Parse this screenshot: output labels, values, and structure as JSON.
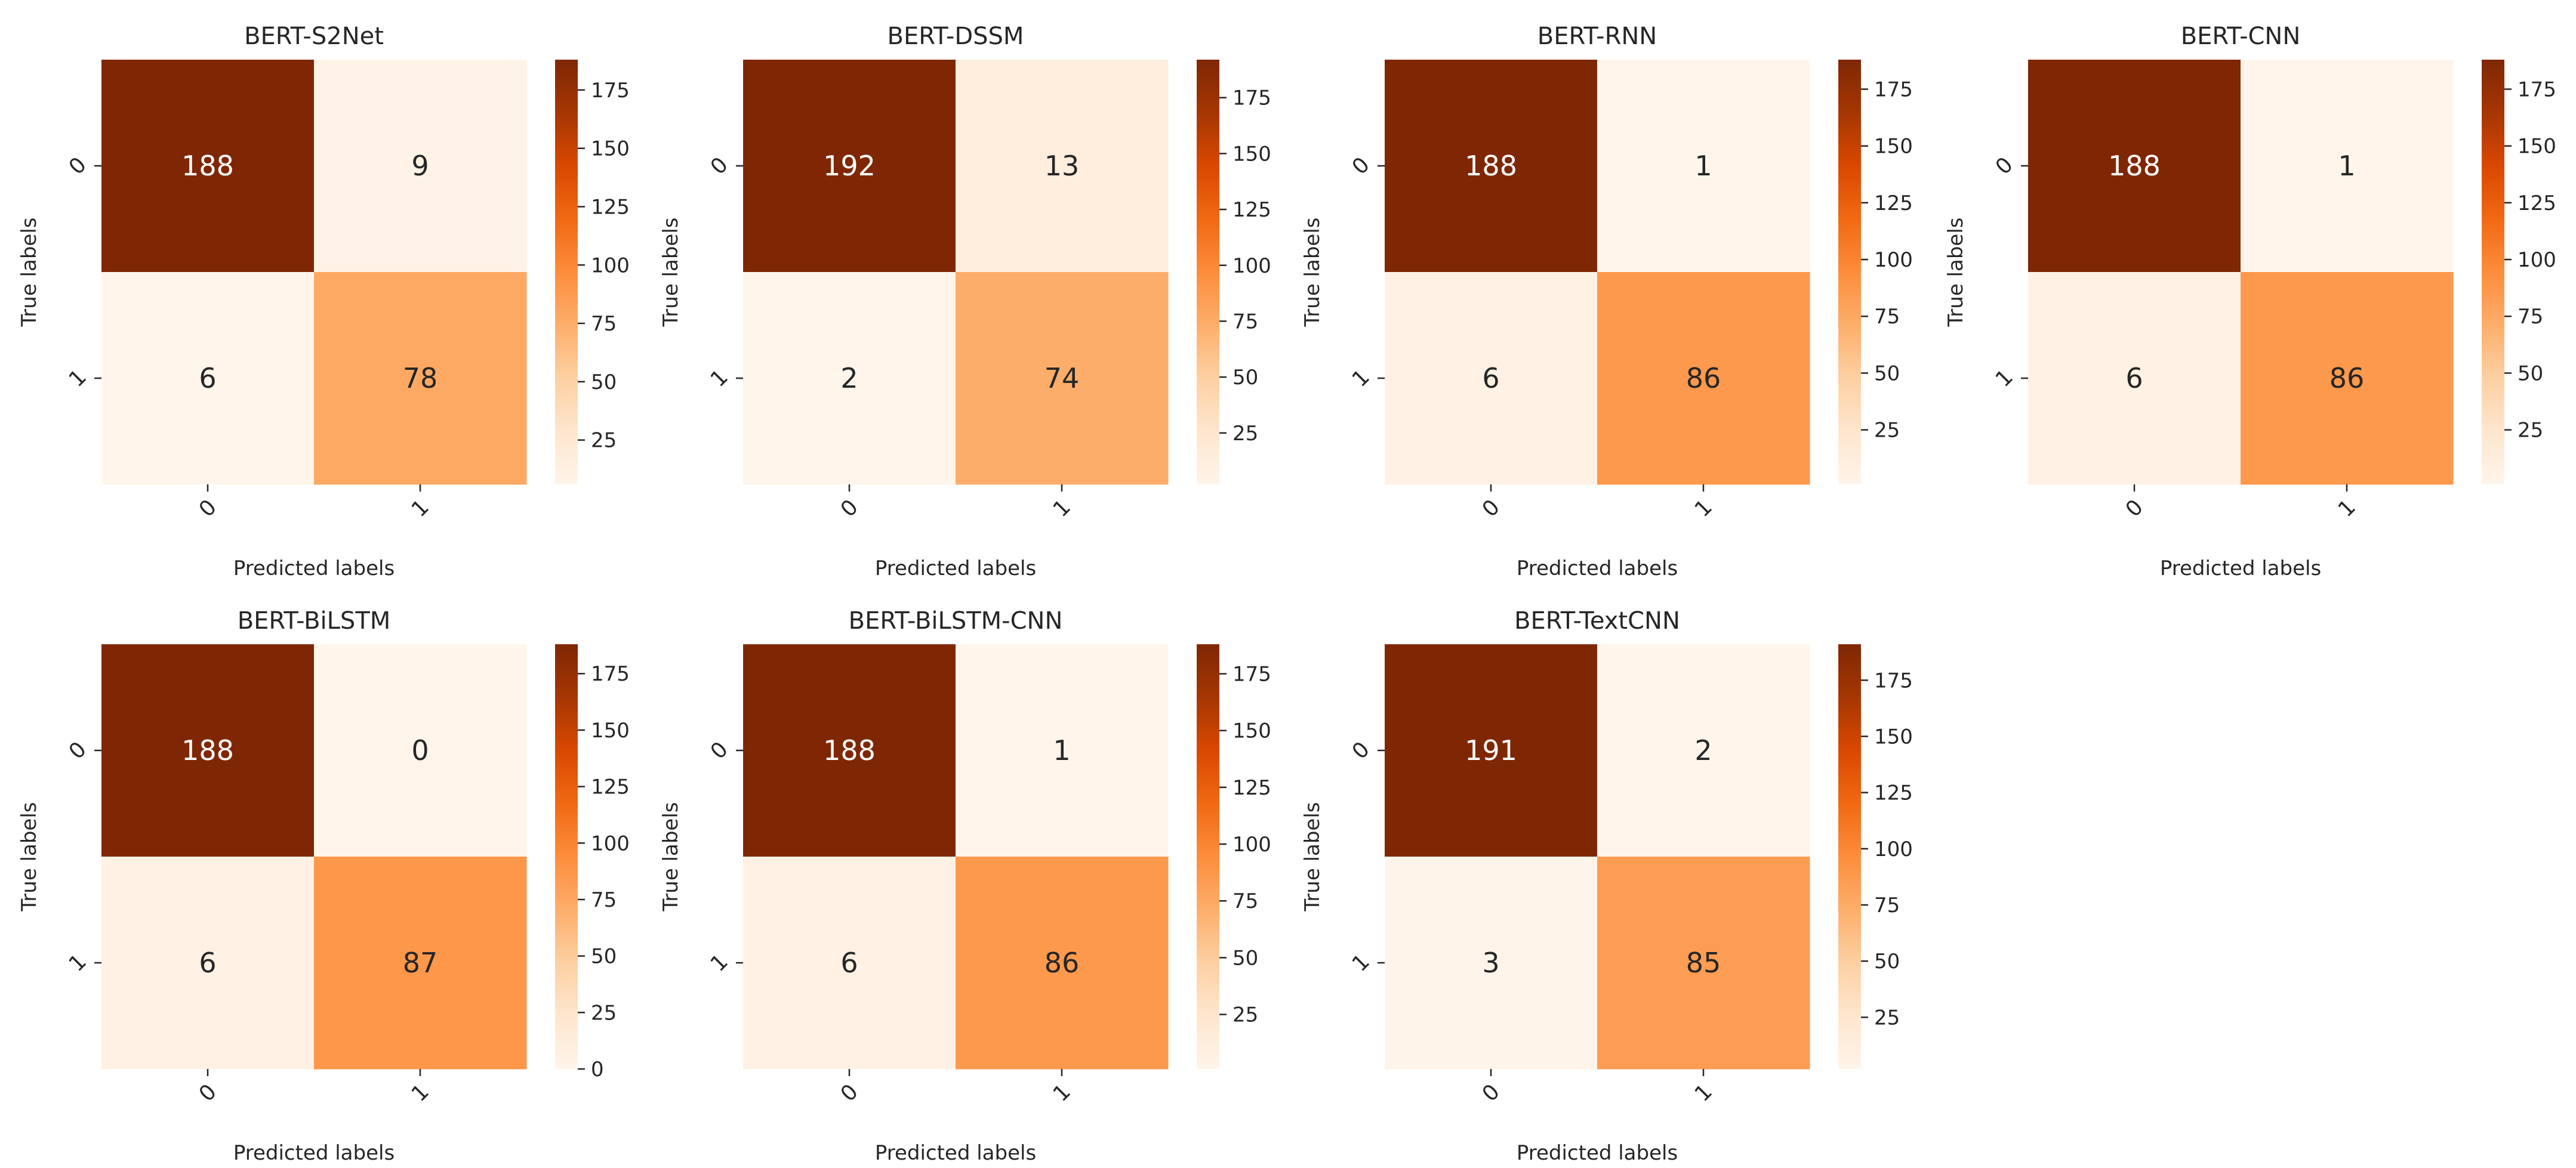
{
  "colors": {
    "cmap": [
      "#fff5eb",
      "#fee6ce",
      "#fdd0a2",
      "#fdae6b",
      "#fd8d3c",
      "#f16913",
      "#d94801",
      "#a63603",
      "#7f2704"
    ],
    "text_dark": "#262626",
    "text_light": "#ffffff"
  },
  "chart_data": [
    {
      "type": "heatmap",
      "title": "BERT-S2Net",
      "matrix": [
        [
          188,
          9
        ],
        [
          6,
          78
        ]
      ],
      "xlabel": "Predicted labels",
      "ylabel": "True labels",
      "xticklabels": [
        "0",
        "1"
      ],
      "yticklabels": [
        "0",
        "1"
      ],
      "vmin": 6,
      "vmax": 188,
      "colorbar_ticks": [
        25,
        50,
        75,
        100,
        125,
        150,
        175
      ],
      "colorbar_labels": [
        "25",
        "50",
        "75",
        "100",
        "125",
        "150",
        "175"
      ]
    },
    {
      "type": "heatmap",
      "title": "BERT-DSSM",
      "matrix": [
        [
          192,
          13
        ],
        [
          2,
          74
        ]
      ],
      "xlabel": "Predicted labels",
      "ylabel": "True labels",
      "xticklabels": [
        "0",
        "1"
      ],
      "yticklabels": [
        "0",
        "1"
      ],
      "vmin": 2,
      "vmax": 192,
      "colorbar_ticks": [
        25,
        50,
        75,
        100,
        125,
        150,
        175
      ],
      "colorbar_labels": [
        "25",
        "50",
        "75",
        "100",
        "125",
        "150",
        "175"
      ]
    },
    {
      "type": "heatmap",
      "title": "BERT-RNN",
      "matrix": [
        [
          188,
          1
        ],
        [
          6,
          86
        ]
      ],
      "xlabel": "Predicted labels",
      "ylabel": "True labels",
      "xticklabels": [
        "0",
        "1"
      ],
      "yticklabels": [
        "0",
        "1"
      ],
      "vmin": 1,
      "vmax": 188,
      "colorbar_ticks": [
        25,
        50,
        75,
        100,
        125,
        150,
        175
      ],
      "colorbar_labels": [
        "25",
        "50",
        "75",
        "100",
        "125",
        "150",
        "175"
      ]
    },
    {
      "type": "heatmap",
      "title": "BERT-CNN",
      "matrix": [
        [
          188,
          1
        ],
        [
          6,
          86
        ]
      ],
      "xlabel": "Predicted labels",
      "ylabel": "True labels",
      "xticklabels": [
        "0",
        "1"
      ],
      "yticklabels": [
        "0",
        "1"
      ],
      "vmin": 1,
      "vmax": 188,
      "colorbar_ticks": [
        25,
        50,
        75,
        100,
        125,
        150,
        175
      ],
      "colorbar_labels": [
        "25",
        "50",
        "75",
        "100",
        "125",
        "150",
        "175"
      ]
    },
    {
      "type": "heatmap",
      "title": "BERT-BiLSTM",
      "matrix": [
        [
          188,
          0
        ],
        [
          6,
          87
        ]
      ],
      "xlabel": "Predicted labels",
      "ylabel": "True labels",
      "xticklabels": [
        "0",
        "1"
      ],
      "yticklabels": [
        "0",
        "1"
      ],
      "vmin": 0,
      "vmax": 188,
      "colorbar_ticks": [
        0,
        25,
        50,
        75,
        100,
        125,
        150,
        175
      ],
      "colorbar_labels": [
        "0",
        "25",
        "50",
        "75",
        "100",
        "125",
        "150",
        "175"
      ]
    },
    {
      "type": "heatmap",
      "title": "BERT-BiLSTM-CNN",
      "matrix": [
        [
          188,
          1
        ],
        [
          6,
          86
        ]
      ],
      "xlabel": "Predicted labels",
      "ylabel": "True labels",
      "xticklabels": [
        "0",
        "1"
      ],
      "yticklabels": [
        "0",
        "1"
      ],
      "vmin": 1,
      "vmax": 188,
      "colorbar_ticks": [
        25,
        50,
        75,
        100,
        125,
        150,
        175
      ],
      "colorbar_labels": [
        "25",
        "50",
        "75",
        "100",
        "125",
        "150",
        "175"
      ]
    },
    {
      "type": "heatmap",
      "title": "BERT-TextCNN",
      "matrix": [
        [
          191,
          2
        ],
        [
          3,
          85
        ]
      ],
      "xlabel": "Predicted labels",
      "ylabel": "True labels",
      "xticklabels": [
        "0",
        "1"
      ],
      "yticklabels": [
        "0",
        "1"
      ],
      "vmin": 2,
      "vmax": 191,
      "colorbar_ticks": [
        25,
        50,
        75,
        100,
        125,
        150,
        175
      ],
      "colorbar_labels": [
        "25",
        "50",
        "75",
        "100",
        "125",
        "150",
        "175"
      ]
    }
  ]
}
